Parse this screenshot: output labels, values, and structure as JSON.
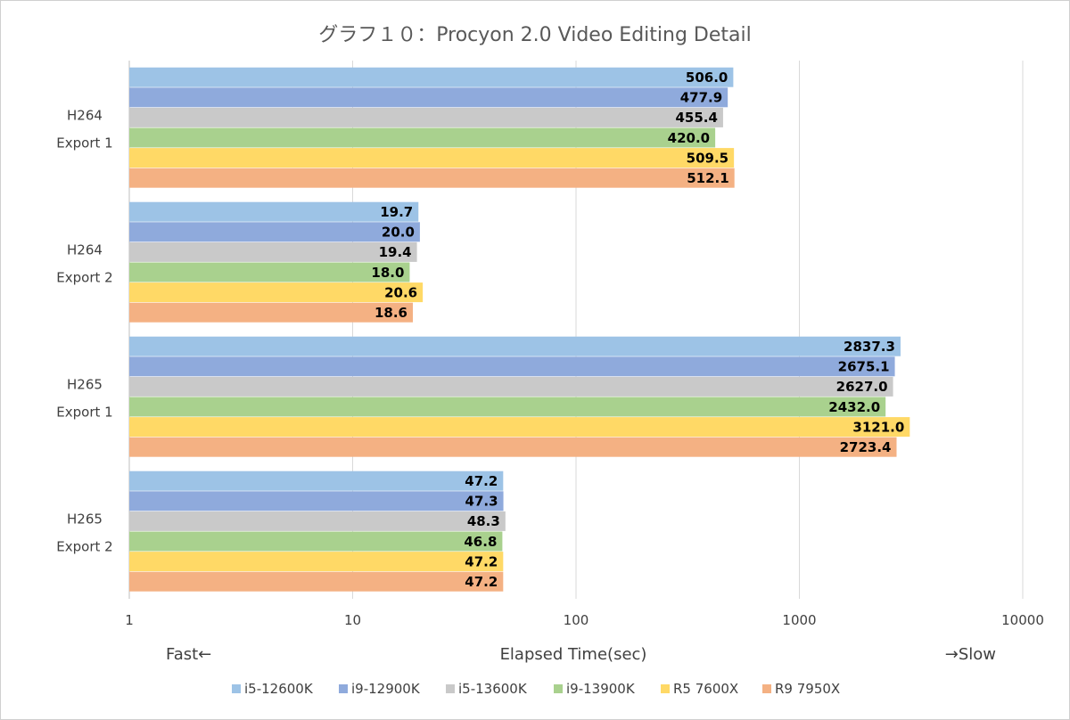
{
  "chart_data": {
    "type": "bar",
    "orientation": "horizontal",
    "title": "グラフ１０：Procyon 2.0 Video Editing Detail",
    "xlabel": "Elapsed Time(sec)",
    "x_scale": "log",
    "xlim": [
      1,
      10000
    ],
    "x_ticks": [
      "1",
      "10",
      "100",
      "1000",
      "10000"
    ],
    "grid": true,
    "legend_position": "bottom",
    "annotations": {
      "left": "Fast←",
      "right": "→Slow"
    },
    "categories": [
      [
        "H264",
        "Export 1"
      ],
      [
        "H264",
        "Export 2"
      ],
      [
        "H265",
        "Export 1"
      ],
      [
        "H265",
        "Export 2"
      ]
    ],
    "series": [
      {
        "name": "i5-12600K",
        "color": "#9dc3e6",
        "values": [
          506.0,
          19.7,
          2837.3,
          47.2
        ],
        "labels": [
          "506.0",
          "19.7",
          "2837.3",
          "47.2"
        ]
      },
      {
        "name": "i9-12900K",
        "color": "#8faadc",
        "values": [
          477.9,
          20.0,
          2675.1,
          47.3
        ],
        "labels": [
          "477.9",
          "20.0",
          "2675.1",
          "47.3"
        ]
      },
      {
        "name": "i5-13600K",
        "color": "#c9c9c9",
        "values": [
          455.4,
          19.4,
          2627.0,
          48.3
        ],
        "labels": [
          "455.4",
          "19.4",
          "2627.0",
          "48.3"
        ]
      },
      {
        "name": "i9-13900K",
        "color": "#a9d18e",
        "values": [
          420.0,
          18.0,
          2432.0,
          46.8
        ],
        "labels": [
          "420.0",
          "18.0",
          "2432.0",
          "46.8"
        ]
      },
      {
        "name": "R5 7600X",
        "color": "#ffd966",
        "values": [
          509.5,
          20.6,
          3121.0,
          47.2
        ],
        "labels": [
          "509.5",
          "20.6",
          "3121.0",
          "47.2"
        ]
      },
      {
        "name": "R9 7950X",
        "color": "#f4b183",
        "values": [
          512.1,
          18.6,
          2723.4,
          47.2
        ],
        "labels": [
          "512.1",
          "18.6",
          "2723.4",
          "47.2"
        ]
      }
    ]
  }
}
